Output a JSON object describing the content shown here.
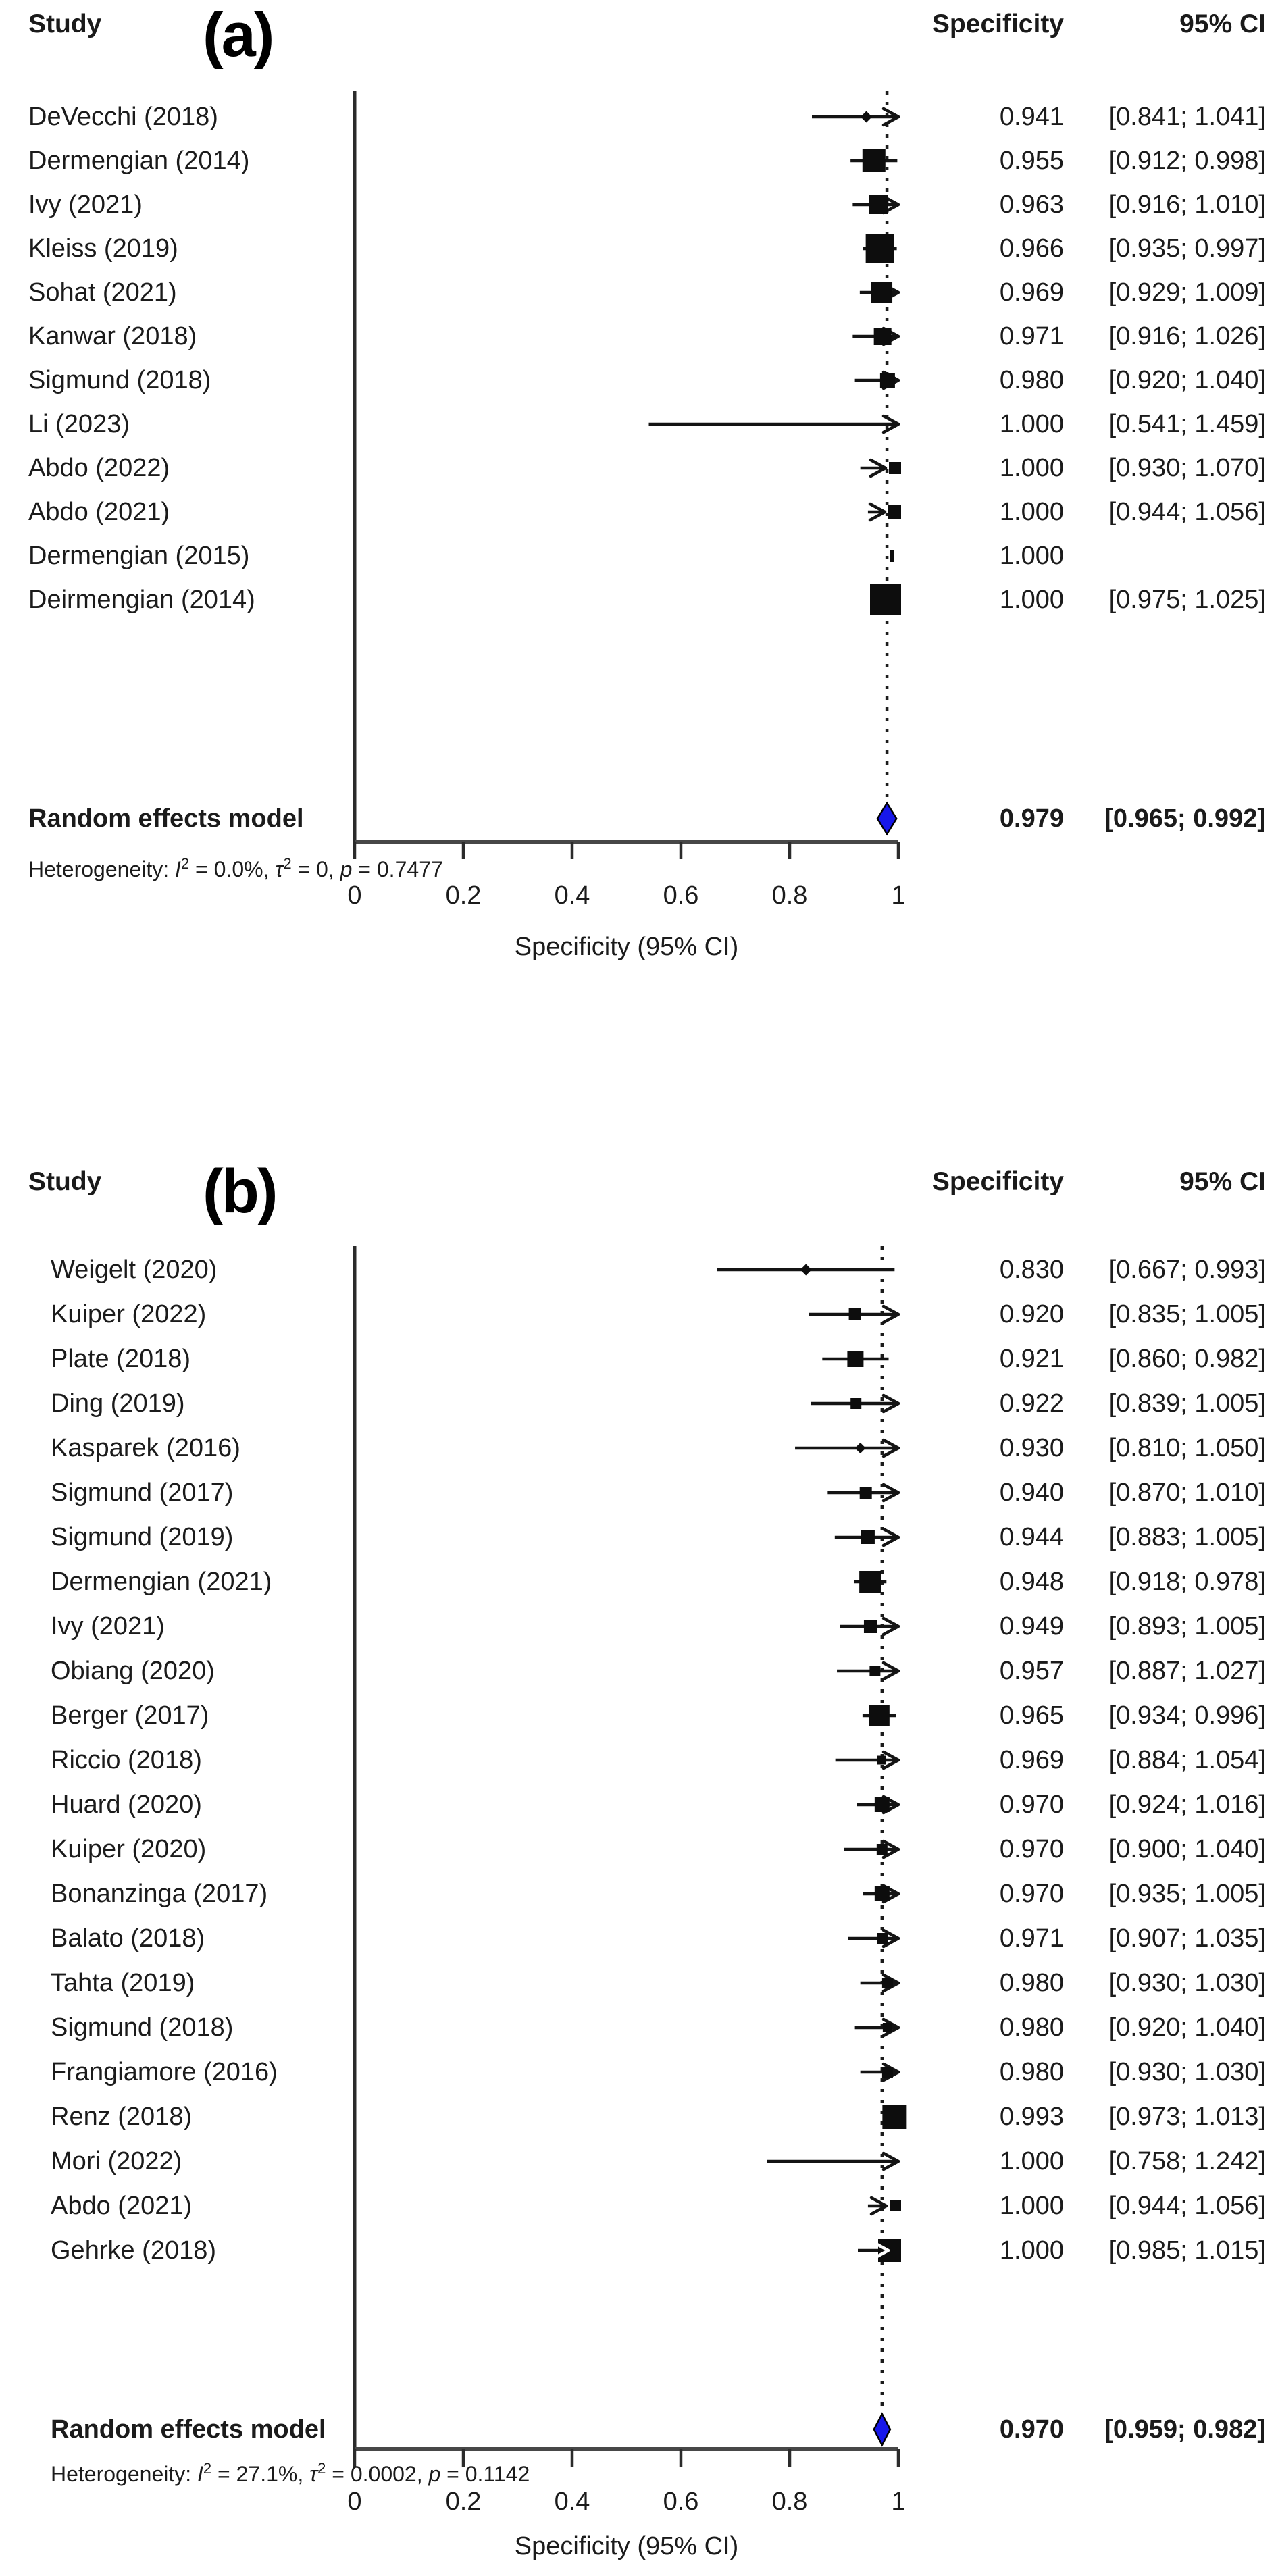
{
  "colors": {
    "text": "#1b1b1b",
    "marker": "#0d0d0d",
    "line": "#141414",
    "axis": "#474747",
    "dotted_line": "#1b1b1b",
    "diamond_fill": "#1717ea",
    "diamond_stroke": "#000000",
    "background": "#ffffff"
  },
  "chart_data": [
    {
      "type": "forest",
      "panel_label": "(a)",
      "columns": {
        "study": "Study",
        "effect": "Specificity",
        "ci": "95% CI"
      },
      "xlabel": "Specificity (95% CI)",
      "xlim": [
        0,
        1
      ],
      "x_ticks": [
        0,
        0.2,
        0.4,
        0.6,
        0.8,
        1
      ],
      "x_tick_labels": [
        "0",
        "0.2",
        "0.4",
        "0.6",
        "0.8",
        "1"
      ],
      "pooled": {
        "label": "Random effects model",
        "estimate": 0.979,
        "low": 0.965,
        "high": 0.992,
        "effect_text": "0.979",
        "ci_text": "[0.965; 0.992]"
      },
      "heterogeneity": {
        "prefix": "Heterogeneity: ",
        "I2": "0.0%",
        "tau2": "0",
        "p": "0.7477",
        "text": "Heterogeneity: I2 = 0.0%, tau2 = 0, p = 0.7477"
      },
      "studies": [
        {
          "name": "DeVecchi (2018)",
          "estimate": 0.941,
          "low": 0.841,
          "high": 1.041,
          "effect_text": "0.941",
          "ci_text": "[0.841; 1.041]",
          "marker": "dot",
          "size": 13,
          "arrow": true
        },
        {
          "name": "Dermengian (2014)",
          "estimate": 0.955,
          "low": 0.912,
          "high": 0.998,
          "effect_text": "0.955",
          "ci_text": "[0.912; 0.998]",
          "marker": "square",
          "size": 34,
          "arrow": false
        },
        {
          "name": "Ivy (2021)",
          "estimate": 0.963,
          "low": 0.916,
          "high": 1.01,
          "effect_text": "0.963",
          "ci_text": "[0.916; 1.010]",
          "marker": "square",
          "size": 28,
          "arrow": true
        },
        {
          "name": "Kleiss (2019)",
          "estimate": 0.966,
          "low": 0.935,
          "high": 0.997,
          "effect_text": "0.966",
          "ci_text": "[0.935; 0.997]",
          "marker": "square",
          "size": 42,
          "arrow": false
        },
        {
          "name": "Sohat (2021)",
          "estimate": 0.969,
          "low": 0.929,
          "high": 1.009,
          "effect_text": "0.969",
          "ci_text": "[0.929; 1.009]",
          "marker": "square",
          "size": 32,
          "arrow": true
        },
        {
          "name": "Kanwar (2018)",
          "estimate": 0.971,
          "low": 0.916,
          "high": 1.026,
          "effect_text": "0.971",
          "ci_text": "[0.916; 1.026]",
          "marker": "square",
          "size": 26,
          "arrow": true
        },
        {
          "name": "Sigmund (2018)",
          "estimate": 0.98,
          "low": 0.92,
          "high": 1.04,
          "effect_text": "0.980",
          "ci_text": "[0.920; 1.040]",
          "marker": "square",
          "size": 22,
          "arrow": true
        },
        {
          "name": "Li (2023)",
          "estimate": 1.0,
          "low": 0.541,
          "high": 1.459,
          "effect_text": "1.000",
          "ci_text": "[0.541; 1.459]",
          "marker": "none",
          "size": 0,
          "arrow": true
        },
        {
          "name": "Abdo (2022)",
          "estimate": 1.0,
          "low": 0.93,
          "high": 1.07,
          "effect_text": "1.000",
          "ci_text": "[0.930; 1.070]",
          "marker": "square",
          "size": 18,
          "arrow": true
        },
        {
          "name": "Abdo (2021)",
          "estimate": 1.0,
          "low": 0.944,
          "high": 1.056,
          "effect_text": "1.000",
          "ci_text": "[0.944; 1.056]",
          "marker": "square",
          "size": 20,
          "arrow": true
        },
        {
          "name": "Dermengian (2015)",
          "estimate": 1.0,
          "low": null,
          "high": null,
          "effect_text": "1.000",
          "ci_text": "",
          "marker": "tick",
          "size": 18,
          "arrow": false
        },
        {
          "name": "Deirmengian (2014)",
          "estimate": 1.0,
          "low": 0.975,
          "high": 1.025,
          "effect_text": "1.000",
          "ci_text": "[0.975; 1.025]",
          "marker": "square",
          "size": 46,
          "arrow": false
        }
      ]
    },
    {
      "type": "forest",
      "panel_label": "(b)",
      "columns": {
        "study": "Study",
        "effect": "Specificity",
        "ci": "95% CI"
      },
      "xlabel": "Specificity (95% CI)",
      "xlim": [
        0,
        1
      ],
      "x_ticks": [
        0,
        0.2,
        0.4,
        0.6,
        0.8,
        1
      ],
      "x_tick_labels": [
        "0",
        "0.2",
        "0.4",
        "0.6",
        "0.8",
        "1"
      ],
      "pooled": {
        "label": "Random effects model",
        "estimate": 0.97,
        "low": 0.959,
        "high": 0.982,
        "effect_text": "0.970",
        "ci_text": "[0.959; 0.982]"
      },
      "heterogeneity": {
        "prefix": "Heterogeneity: ",
        "I2": "27.1%",
        "tau2": "0.0002",
        "p": "0.1142",
        "text": "Heterogeneity: I2 = 27.1%, tau2 = 0.0002, p = 0.1142"
      },
      "studies": [
        {
          "name": "Weigelt (2020)",
          "estimate": 0.83,
          "low": 0.667,
          "high": 0.993,
          "effect_text": "0.830",
          "ci_text": "[0.667; 0.993]",
          "marker": "dot",
          "size": 13,
          "arrow": false
        },
        {
          "name": "Kuiper (2022)",
          "estimate": 0.92,
          "low": 0.835,
          "high": 1.005,
          "effect_text": "0.920",
          "ci_text": "[0.835; 1.005]",
          "marker": "square",
          "size": 18,
          "arrow": true
        },
        {
          "name": "Plate (2018)",
          "estimate": 0.921,
          "low": 0.86,
          "high": 0.982,
          "effect_text": "0.921",
          "ci_text": "[0.860; 0.982]",
          "marker": "square",
          "size": 24,
          "arrow": false
        },
        {
          "name": "Ding (2019)",
          "estimate": 0.922,
          "low": 0.839,
          "high": 1.005,
          "effect_text": "0.922",
          "ci_text": "[0.839; 1.005]",
          "marker": "square",
          "size": 16,
          "arrow": true
        },
        {
          "name": "Kasparek (2016)",
          "estimate": 0.93,
          "low": 0.81,
          "high": 1.05,
          "effect_text": "0.930",
          "ci_text": "[0.810; 1.050]",
          "marker": "dot",
          "size": 12,
          "arrow": true
        },
        {
          "name": "Sigmund (2017)",
          "estimate": 0.94,
          "low": 0.87,
          "high": 1.01,
          "effect_text": "0.940",
          "ci_text": "[0.870; 1.010]",
          "marker": "square",
          "size": 18,
          "arrow": true
        },
        {
          "name": "Sigmund (2019)",
          "estimate": 0.944,
          "low": 0.883,
          "high": 1.005,
          "effect_text": "0.944",
          "ci_text": "[0.883; 1.005]",
          "marker": "square",
          "size": 20,
          "arrow": true
        },
        {
          "name": "Dermengian (2021)",
          "estimate": 0.948,
          "low": 0.918,
          "high": 0.978,
          "effect_text": "0.948",
          "ci_text": "[0.918; 0.978]",
          "marker": "square",
          "size": 32,
          "arrow": false
        },
        {
          "name": "Ivy (2021)",
          "estimate": 0.949,
          "low": 0.893,
          "high": 1.005,
          "effect_text": "0.949",
          "ci_text": "[0.893; 1.005]",
          "marker": "square",
          "size": 20,
          "arrow": true
        },
        {
          "name": "Obiang (2020)",
          "estimate": 0.957,
          "low": 0.887,
          "high": 1.027,
          "effect_text": "0.957",
          "ci_text": "[0.887; 1.027]",
          "marker": "square",
          "size": 16,
          "arrow": true
        },
        {
          "name": "Berger (2017)",
          "estimate": 0.965,
          "low": 0.934,
          "high": 0.996,
          "effect_text": "0.965",
          "ci_text": "[0.934; 0.996]",
          "marker": "square",
          "size": 30,
          "arrow": false
        },
        {
          "name": "Riccio (2018)",
          "estimate": 0.969,
          "low": 0.884,
          "high": 1.054,
          "effect_text": "0.969",
          "ci_text": "[0.884; 1.054]",
          "marker": "square",
          "size": 13,
          "arrow": true
        },
        {
          "name": "Huard (2020)",
          "estimate": 0.97,
          "low": 0.924,
          "high": 1.016,
          "effect_text": "0.970",
          "ci_text": "[0.924; 1.016]",
          "marker": "square",
          "size": 22,
          "arrow": true
        },
        {
          "name": "Kuiper (2020)",
          "estimate": 0.97,
          "low": 0.9,
          "high": 1.04,
          "effect_text": "0.970",
          "ci_text": "[0.900; 1.040]",
          "marker": "square",
          "size": 16,
          "arrow": true
        },
        {
          "name": "Bonanzinga (2017)",
          "estimate": 0.97,
          "low": 0.935,
          "high": 1.005,
          "effect_text": "0.970",
          "ci_text": "[0.935; 1.005]",
          "marker": "square",
          "size": 22,
          "arrow": true
        },
        {
          "name": "Balato (2018)",
          "estimate": 0.971,
          "low": 0.907,
          "high": 1.035,
          "effect_text": "0.971",
          "ci_text": "[0.907; 1.035]",
          "marker": "square",
          "size": 16,
          "arrow": true
        },
        {
          "name": "Tahta (2019)",
          "estimate": 0.98,
          "low": 0.93,
          "high": 1.03,
          "effect_text": "0.980",
          "ci_text": "[0.930; 1.030]",
          "marker": "square",
          "size": 16,
          "arrow": true
        },
        {
          "name": "Sigmund (2018)",
          "estimate": 0.98,
          "low": 0.92,
          "high": 1.04,
          "effect_text": "0.980",
          "ci_text": "[0.920; 1.040]",
          "marker": "square",
          "size": 14,
          "arrow": true
        },
        {
          "name": "Frangiamore (2016)",
          "estimate": 0.98,
          "low": 0.93,
          "high": 1.03,
          "effect_text": "0.980",
          "ci_text": "[0.930; 1.030]",
          "marker": "square",
          "size": 16,
          "arrow": true
        },
        {
          "name": "Renz (2018)",
          "estimate": 0.993,
          "low": 0.973,
          "high": 1.013,
          "effect_text": "0.993",
          "ci_text": "[0.973; 1.013]",
          "marker": "square",
          "size": 36,
          "arrow": false
        },
        {
          "name": "Mori (2022)",
          "estimate": 1.0,
          "low": 0.758,
          "high": 1.242,
          "effect_text": "1.000",
          "ci_text": "[0.758; 1.242]",
          "marker": "none",
          "size": 0,
          "arrow": true
        },
        {
          "name": "Abdo (2021)",
          "estimate": 1.0,
          "low": 0.944,
          "high": 1.056,
          "effect_text": "1.000",
          "ci_text": "[0.944; 1.056]",
          "marker": "square",
          "size": 16,
          "arrow": true
        },
        {
          "name": "Gehrke (2018)",
          "estimate": 1.0,
          "low": 0.985,
          "high": 1.015,
          "effect_text": "1.000",
          "ci_text": "[0.985; 1.015]",
          "marker": "square-arrow-in",
          "size": 34,
          "arrow": false
        }
      ]
    }
  ]
}
